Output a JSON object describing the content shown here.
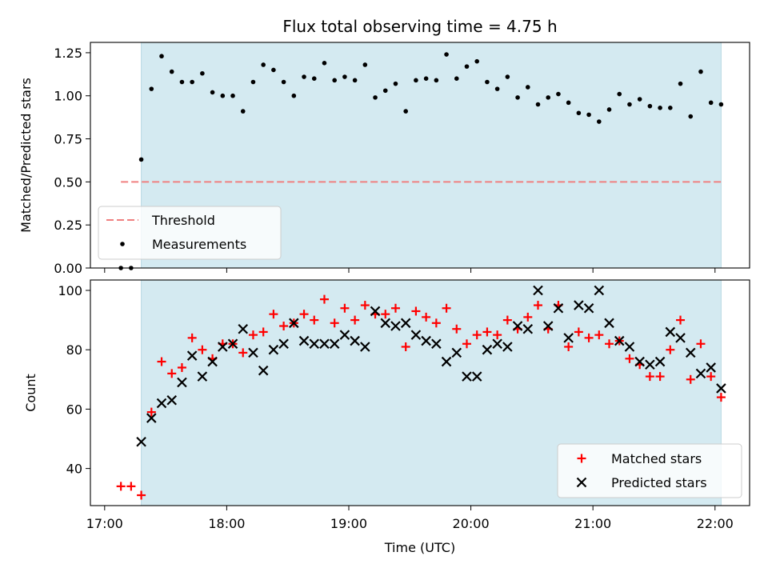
{
  "figure": {
    "title": "Flux total observing time = 4.75 h",
    "xlabel": "Time (UTC)",
    "shade_color": "#d4eaf1",
    "shade_edge_color": "#b8d9e4"
  },
  "chart_data": [
    {
      "type": "scatter",
      "panel": "top",
      "ylabel": "Matched/Predicted stars",
      "xlim": [
        "16:53",
        "22:17"
      ],
      "ylim": [
        0,
        1.31
      ],
      "shaded_span": [
        "17:18",
        "22:03"
      ],
      "xticks": [
        "17:00",
        "18:00",
        "19:00",
        "20:00",
        "21:00",
        "22:00"
      ],
      "yticks": [
        0.0,
        0.25,
        0.5,
        0.75,
        1.0,
        1.25
      ],
      "ytick_labels": [
        "0.00",
        "0.25",
        "0.50",
        "0.75",
        "1.00",
        "1.25"
      ],
      "threshold": {
        "name": "Threshold",
        "value": 0.5,
        "x_start": "17:08",
        "x_end": "22:03",
        "color": "#f08080",
        "style": "dashed"
      },
      "series": [
        {
          "name": "Measurements",
          "color": "#000000",
          "marker": "dot",
          "x": [
            "17:08",
            "17:13",
            "17:18",
            "17:23",
            "17:28",
            "17:33",
            "17:38",
            "17:43",
            "17:48",
            "17:53",
            "17:58",
            "18:03",
            "18:08",
            "18:13",
            "18:18",
            "18:23",
            "18:28",
            "18:33",
            "18:38",
            "18:43",
            "18:48",
            "18:53",
            "18:58",
            "19:03",
            "19:08",
            "19:13",
            "19:18",
            "19:23",
            "19:28",
            "19:33",
            "19:38",
            "19:43",
            "19:48",
            "19:53",
            "19:58",
            "20:03",
            "20:08",
            "20:13",
            "20:18",
            "20:23",
            "20:28",
            "20:33",
            "20:38",
            "20:43",
            "20:48",
            "20:53",
            "20:58",
            "21:03",
            "21:08",
            "21:13",
            "21:18",
            "21:23",
            "21:28",
            "21:33",
            "21:38",
            "21:43",
            "21:48",
            "21:53",
            "21:58",
            "22:03"
          ],
          "y": [
            0.0,
            0.0,
            0.63,
            1.04,
            1.23,
            1.14,
            1.08,
            1.08,
            1.13,
            1.02,
            1.0,
            1.0,
            0.91,
            1.08,
            1.18,
            1.15,
            1.08,
            1.0,
            1.11,
            1.1,
            1.19,
            1.09,
            1.11,
            1.09,
            1.18,
            0.99,
            1.03,
            1.07,
            0.91,
            1.09,
            1.1,
            1.09,
            1.24,
            1.1,
            1.17,
            1.2,
            1.08,
            1.04,
            1.11,
            0.99,
            1.05,
            0.95,
            0.99,
            1.01,
            0.96,
            0.9,
            0.89,
            0.85,
            0.92,
            1.01,
            0.95,
            0.98,
            0.94,
            0.93,
            0.93,
            1.07,
            0.88,
            1.14,
            0.96,
            0.95
          ]
        }
      ],
      "legend": {
        "placement": "lower-left",
        "entries": [
          "Threshold",
          "Measurements"
        ]
      }
    },
    {
      "type": "scatter",
      "panel": "bottom",
      "ylabel": "Count",
      "xlim": [
        "16:53",
        "22:17"
      ],
      "ylim": [
        27.5,
        103.5
      ],
      "shaded_span": [
        "17:18",
        "22:03"
      ],
      "xticks": [
        "17:00",
        "18:00",
        "19:00",
        "20:00",
        "21:00",
        "22:00"
      ],
      "yticks": [
        40,
        60,
        80,
        100
      ],
      "ytick_labels": [
        "40",
        "60",
        "80",
        "100"
      ],
      "series": [
        {
          "name": "Matched stars",
          "color": "#ff0000",
          "marker": "plus",
          "x": [
            "17:08",
            "17:13",
            "17:18",
            "17:23",
            "17:28",
            "17:33",
            "17:38",
            "17:43",
            "17:48",
            "17:53",
            "17:58",
            "18:03",
            "18:08",
            "18:13",
            "18:18",
            "18:23",
            "18:28",
            "18:33",
            "18:38",
            "18:43",
            "18:48",
            "18:53",
            "18:58",
            "19:03",
            "19:08",
            "19:13",
            "19:18",
            "19:23",
            "19:28",
            "19:33",
            "19:38",
            "19:43",
            "19:48",
            "19:53",
            "19:58",
            "20:03",
            "20:08",
            "20:13",
            "20:18",
            "20:23",
            "20:28",
            "20:33",
            "20:38",
            "20:43",
            "20:48",
            "20:53",
            "20:58",
            "21:03",
            "21:08",
            "21:13",
            "21:18",
            "21:23",
            "21:28",
            "21:33",
            "21:38",
            "21:43",
            "21:48",
            "21:53",
            "21:58",
            "22:03"
          ],
          "y": [
            34,
            34,
            31,
            59,
            76,
            72,
            74,
            84,
            80,
            77,
            82,
            82,
            79,
            85,
            86,
            92,
            88,
            89,
            92,
            90,
            97,
            89,
            94,
            90,
            95,
            92,
            92,
            94,
            81,
            93,
            91,
            89,
            94,
            87,
            82,
            85,
            86,
            85,
            90,
            87,
            91,
            95,
            87,
            95,
            81,
            86,
            84,
            85,
            82,
            83,
            77,
            75,
            71,
            71,
            80,
            90,
            70,
            82,
            71,
            64
          ]
        },
        {
          "name": "Predicted stars",
          "color": "#000000",
          "marker": "x",
          "x": [
            "17:18",
            "17:23",
            "17:28",
            "17:33",
            "17:38",
            "17:43",
            "17:48",
            "17:53",
            "17:58",
            "18:03",
            "18:08",
            "18:13",
            "18:18",
            "18:23",
            "18:28",
            "18:33",
            "18:38",
            "18:43",
            "18:48",
            "18:53",
            "18:58",
            "19:03",
            "19:08",
            "19:13",
            "19:18",
            "19:23",
            "19:28",
            "19:33",
            "19:38",
            "19:43",
            "19:48",
            "19:53",
            "19:58",
            "20:03",
            "20:08",
            "20:13",
            "20:18",
            "20:23",
            "20:28",
            "20:33",
            "20:38",
            "20:43",
            "20:48",
            "20:53",
            "20:58",
            "21:03",
            "21:08",
            "21:13",
            "21:18",
            "21:23",
            "21:28",
            "21:33",
            "21:38",
            "21:43",
            "21:48",
            "21:53",
            "21:58",
            "22:03"
          ],
          "y": [
            49,
            57,
            62,
            63,
            69,
            78,
            71,
            76,
            81,
            82,
            87,
            79,
            73,
            80,
            82,
            89,
            83,
            82,
            82,
            82,
            85,
            83,
            81,
            93,
            89,
            88,
            89,
            85,
            83,
            82,
            76,
            79,
            71,
            71,
            80,
            82,
            81,
            88,
            87,
            100,
            88,
            94,
            84,
            95,
            94,
            100,
            89,
            83,
            81,
            76,
            75,
            76,
            86,
            84,
            79,
            72,
            74,
            67
          ]
        }
      ],
      "legend": {
        "placement": "lower-right",
        "entries": [
          "Matched stars",
          "Predicted stars"
        ]
      }
    }
  ]
}
